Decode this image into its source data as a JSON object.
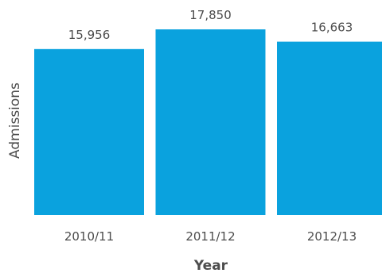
{
  "chart_data": {
    "type": "bar",
    "categories": [
      "2010/11",
      "2011/12",
      "2012/13"
    ],
    "values": [
      15956,
      17850,
      16663
    ],
    "value_labels": [
      "15,956",
      "17,850",
      "16,663"
    ],
    "title": "",
    "xlabel": "Year",
    "ylabel": "Admissions",
    "ylim": [
      0,
      17850
    ],
    "grid": false,
    "legend": "none",
    "colors": {
      "bar": "#0aa2de",
      "text": "#4d4d4d"
    }
  }
}
